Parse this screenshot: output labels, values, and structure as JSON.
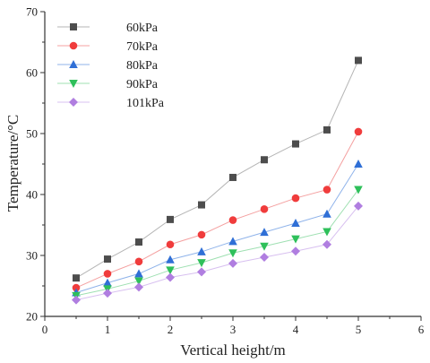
{
  "chart_data": {
    "type": "line",
    "xlabel": "Vertical height/m",
    "ylabel": "Temperature/°C",
    "xlim": [
      0,
      6
    ],
    "ylim": [
      20,
      70
    ],
    "xticks": [
      0,
      1,
      2,
      3,
      4,
      5,
      6
    ],
    "yticks": [
      20,
      30,
      40,
      50,
      60,
      70
    ],
    "grid": false,
    "legend_position": "top-left",
    "x": [
      0.5,
      1.0,
      1.5,
      2.0,
      2.5,
      3.0,
      3.5,
      4.0,
      4.5,
      5.0
    ],
    "series": [
      {
        "name": "60kPa",
        "marker": "square",
        "color": "#4d4d4d",
        "line_color": "#b5b5b5",
        "values": [
          26.3,
          29.4,
          32.2,
          35.9,
          38.3,
          42.8,
          45.7,
          48.3,
          50.6,
          62.0
        ]
      },
      {
        "name": "70kPa",
        "marker": "circle",
        "color": "#f03c3c",
        "line_color": "#f4a0a0",
        "values": [
          24.7,
          27.0,
          29.0,
          31.8,
          33.4,
          35.8,
          37.6,
          39.4,
          40.8,
          50.3
        ]
      },
      {
        "name": "80kPa",
        "marker": "triangle-up",
        "color": "#2f6fd6",
        "line_color": "#8fb3ea",
        "values": [
          23.9,
          25.5,
          27.0,
          29.3,
          30.6,
          32.3,
          33.8,
          35.3,
          36.8,
          45.0
        ]
      },
      {
        "name": "90kPa",
        "marker": "triangle-down",
        "color": "#2ec05a",
        "line_color": "#9fe0b2",
        "values": [
          23.4,
          24.5,
          25.8,
          27.6,
          28.8,
          30.4,
          31.5,
          32.7,
          33.9,
          40.8
        ]
      },
      {
        "name": "101kPa",
        "marker": "diamond",
        "color": "#b07ee0",
        "line_color": "#d8c0f0",
        "values": [
          22.7,
          23.8,
          24.8,
          26.4,
          27.3,
          28.7,
          29.7,
          30.7,
          31.8,
          38.1
        ]
      }
    ]
  }
}
